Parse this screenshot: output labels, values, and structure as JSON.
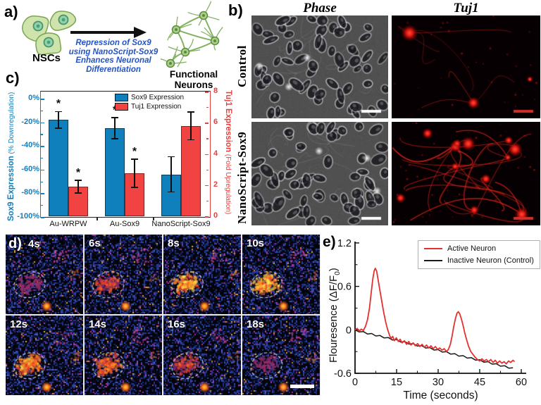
{
  "colors": {
    "sox9_bar": "#1080bd",
    "tuj1_bar": "#f04342",
    "left_axis": "#1080bd",
    "right_axis": "#e8403e",
    "active_trace": "#e53030",
    "inactive_trace": "#1a1a1a",
    "caption_blue": "#2353c4",
    "schematic_green": "#cfe3ac",
    "tuj1_fluorescence": "#e02318"
  },
  "panel_a": {
    "label": "a)",
    "nscs_label": "NSCs",
    "arrow_caption_lines": [
      "Repression of Sox9",
      "using NanoScript-Sox9",
      "Enhances Neuronal",
      "Differentiation"
    ],
    "result_label_lines": [
      "Functional",
      "Neurons"
    ]
  },
  "panel_b": {
    "label": "b)",
    "col_headers": [
      "Phase",
      "Tuj1"
    ],
    "row_labels": [
      "Control",
      "NanoScript-Sox9"
    ]
  },
  "panel_c": {
    "label": "c)"
  },
  "panel_d": {
    "label": "d)",
    "frame_times": [
      "4s",
      "6s",
      "8s",
      "10s",
      "12s",
      "14s",
      "16s",
      "18s"
    ]
  },
  "panel_e": {
    "label": "e)"
  },
  "chart_data": [
    {
      "type": "bar",
      "panel": "c",
      "categories": [
        "Au-WRPW",
        "Au-Sox9",
        "NanoScript-Sox9"
      ],
      "series": [
        {
          "name": "Sox9 Expression",
          "axis": "left",
          "color": "#1080bd",
          "values": [
            -18,
            -25,
            -64
          ],
          "errors": [
            7,
            9,
            15
          ],
          "significant": [
            true,
            true,
            false
          ]
        },
        {
          "name": "Tuj1 Expression",
          "axis": "right",
          "color": "#f04342",
          "values": [
            1.9,
            2.75,
            5.8
          ],
          "errors": [
            0.4,
            0.9,
            0.9
          ],
          "significant": [
            true,
            true,
            false
          ]
        }
      ],
      "left_axis": {
        "label_bold": "Sox9 Expression",
        "label_rest": " (% Downregulation)",
        "tick_labels": [
          "0%",
          "-20%",
          "-40%",
          "-60%",
          "-80%",
          "-100%"
        ],
        "tick_values": [
          0,
          -20,
          -40,
          -60,
          -80,
          -100
        ],
        "range": [
          0,
          -100
        ],
        "color": "#1080bd"
      },
      "right_axis": {
        "label_bold": "Tuj1 Expression",
        "label_rest": " (Fold Upregulation)",
        "tick_values": [
          0,
          2,
          4,
          6,
          8
        ],
        "range": [
          0,
          8
        ],
        "color": "#e8403e"
      },
      "legend": [
        "Sox9 Expression",
        "Tuj1 Expression"
      ],
      "significance_marker": "*"
    },
    {
      "type": "line",
      "panel": "e",
      "xlabel": "Time (seconds)",
      "ylabel_pre": "Flouresence (ΔF/F",
      "ylabel_sub": "0",
      "ylabel_post": ")",
      "xticks": [
        0,
        15,
        30,
        45,
        60
      ],
      "yticks": [
        1.2,
        0.6,
        0,
        -0.6
      ],
      "xlim": [
        0,
        61.8
      ],
      "ylim": [
        -0.6,
        1.2
      ],
      "legend_position": "top-right",
      "series": [
        {
          "name": "Active Neuron",
          "color": "#e53030",
          "points": [
            [
              0,
              0
            ],
            [
              0.8,
              0.02
            ],
            [
              1.5,
              -0.02
            ],
            [
              2.2,
              0.01
            ],
            [
              3,
              -0.01
            ],
            [
              3.8,
              0.05
            ],
            [
              4.5,
              0.14
            ],
            [
              5.2,
              0.3
            ],
            [
              5.8,
              0.5
            ],
            [
              6.4,
              0.7
            ],
            [
              6.9,
              0.81
            ],
            [
              7.3,
              0.85
            ],
            [
              7.8,
              0.81
            ],
            [
              8.3,
              0.7
            ],
            [
              9,
              0.54
            ],
            [
              9.7,
              0.38
            ],
            [
              10.4,
              0.23
            ],
            [
              11.1,
              0.1
            ],
            [
              11.8,
              0
            ],
            [
              12.4,
              -0.07
            ],
            [
              13,
              -0.12
            ],
            [
              13.6,
              -0.09
            ],
            [
              14.2,
              -0.15
            ],
            [
              14.9,
              -0.11
            ],
            [
              15.6,
              -0.16
            ],
            [
              16.3,
              -0.13
            ],
            [
              17,
              -0.18
            ],
            [
              17.8,
              -0.15
            ],
            [
              18.6,
              -0.2
            ],
            [
              19.4,
              -0.16
            ],
            [
              20.2,
              -0.21
            ],
            [
              21,
              -0.18
            ],
            [
              21.8,
              -0.22
            ],
            [
              22.6,
              -0.19
            ],
            [
              23.4,
              -0.23
            ],
            [
              24.2,
              -0.2
            ],
            [
              25,
              -0.24
            ],
            [
              25.8,
              -0.21
            ],
            [
              26.6,
              -0.25
            ],
            [
              27.4,
              -0.22
            ],
            [
              28.2,
              -0.26
            ],
            [
              29,
              -0.23
            ],
            [
              29.8,
              -0.27
            ],
            [
              30.6,
              -0.25
            ],
            [
              31.4,
              -0.28
            ],
            [
              32.2,
              -0.26
            ],
            [
              33,
              -0.3
            ],
            [
              33.7,
              -0.27
            ],
            [
              34.4,
              -0.2
            ],
            [
              35,
              -0.09
            ],
            [
              35.6,
              0.04
            ],
            [
              36.2,
              0.15
            ],
            [
              36.8,
              0.23
            ],
            [
              37.3,
              0.25
            ],
            [
              37.8,
              0.22
            ],
            [
              38.4,
              0.15
            ],
            [
              39,
              0.06
            ],
            [
              39.6,
              -0.04
            ],
            [
              40.3,
              -0.14
            ],
            [
              41,
              -0.23
            ],
            [
              41.8,
              -0.3
            ],
            [
              42.6,
              -0.34
            ],
            [
              43.4,
              -0.38
            ],
            [
              44.2,
              -0.41
            ],
            [
              45,
              -0.43
            ],
            [
              45.8,
              -0.4
            ],
            [
              46.6,
              -0.43
            ],
            [
              47.4,
              -0.41
            ],
            [
              48.2,
              -0.44
            ],
            [
              49,
              -0.41
            ],
            [
              49.8,
              -0.45
            ],
            [
              50.6,
              -0.42
            ],
            [
              51.4,
              -0.46
            ],
            [
              52.2,
              -0.43
            ],
            [
              53,
              -0.46
            ],
            [
              53.8,
              -0.44
            ],
            [
              54.6,
              -0.47
            ],
            [
              55.4,
              -0.43
            ],
            [
              56.2,
              -0.45
            ],
            [
              57,
              -0.42
            ],
            [
              57.6,
              -0.44
            ]
          ]
        },
        {
          "name": "Inactive Neuron (Control)",
          "color": "#1a1a1a",
          "points": [
            [
              0,
              0
            ],
            [
              1.5,
              -0.029
            ],
            [
              3,
              -0.023
            ],
            [
              4.5,
              -0.057
            ],
            [
              6,
              -0.051
            ],
            [
              7.5,
              -0.085
            ],
            [
              9,
              -0.078
            ],
            [
              10.5,
              -0.112
            ],
            [
              12,
              -0.106
            ],
            [
              13.5,
              -0.14
            ],
            [
              15,
              -0.134
            ],
            [
              16.5,
              -0.168
            ],
            [
              18,
              -0.162
            ],
            [
              19.5,
              -0.196
            ],
            [
              21,
              -0.19
            ],
            [
              22.5,
              -0.224
            ],
            [
              24,
              -0.217
            ],
            [
              25.5,
              -0.251
            ],
            [
              27,
              -0.245
            ],
            [
              28.5,
              -0.279
            ],
            [
              30,
              -0.273
            ],
            [
              31.5,
              -0.307
            ],
            [
              33,
              -0.301
            ],
            [
              34.5,
              -0.335
            ],
            [
              36,
              -0.329
            ],
            [
              37.5,
              -0.363
            ],
            [
              39,
              -0.356
            ],
            [
              40.5,
              -0.39
            ],
            [
              42,
              -0.384
            ],
            [
              43.5,
              -0.418
            ],
            [
              45,
              -0.412
            ],
            [
              46.5,
              -0.446
            ],
            [
              48,
              -0.44
            ],
            [
              49.5,
              -0.474
            ],
            [
              51,
              -0.468
            ],
            [
              52.5,
              -0.502
            ],
            [
              54,
              -0.495
            ],
            [
              55.5,
              -0.529
            ],
            [
              57,
              -0.523
            ]
          ]
        }
      ]
    }
  ]
}
